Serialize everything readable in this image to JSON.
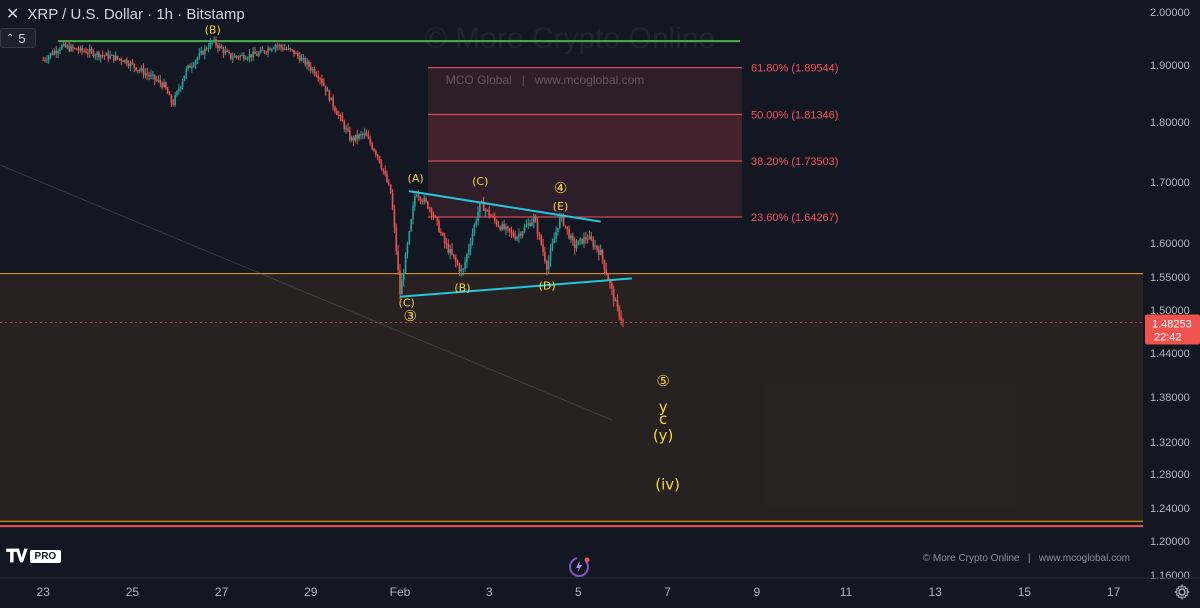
{
  "header": {
    "symbol_title": "XRP / U.S. Dollar · 1h · Bitstamp",
    "interval_value": "5"
  },
  "watermark": "© More Crypto Online",
  "inner_watermark": "MCO Global   |   www.mcoglobal.com",
  "footer": {
    "pro_label": "PRO",
    "credit": "© More Crypto Online   |   www.mcoglobal.com"
  },
  "colors": {
    "background": "#131722",
    "up": "#26a69a",
    "down": "#ef5350",
    "fib": "#f7525f",
    "support_zone": "#f0a020",
    "triangle": "#26c6da",
    "resistance": "#4caf50",
    "wave_label": "#f5d442"
  },
  "chart_data": {
    "type": "candlestick",
    "symbol": "XRP / U.S. Dollar",
    "interval": "1h",
    "exchange": "Bitstamp",
    "last_price": "1.48253",
    "countdown": "22:42",
    "price_axis_ticks": [
      "2.00000",
      "1.90000",
      "1.80000",
      "1.70000",
      "1.60000",
      "1.55000",
      "1.50000",
      "1.44000",
      "1.38000",
      "1.32000",
      "1.28000",
      "1.24000",
      "1.20000",
      "1.16000"
    ],
    "date_axis_ticks": [
      "23",
      "25",
      "27",
      "29",
      "Feb",
      "3",
      "5",
      "7",
      "9",
      "11",
      "13",
      "15",
      "17"
    ],
    "ylim": [
      1.158,
      2.0
    ],
    "price_path": [
      {
        "t": -8.0,
        "p": 1.91
      },
      {
        "t": -7.6,
        "p": 1.935
      },
      {
        "t": -7.0,
        "p": 1.925
      },
      {
        "t": -6.2,
        "p": 1.91
      },
      {
        "t": -5.3,
        "p": 1.865
      },
      {
        "t": -5.1,
        "p": 1.83
      },
      {
        "t": -4.8,
        "p": 1.89
      },
      {
        "t": -4.2,
        "p": 1.945
      },
      {
        "t": -3.8,
        "p": 1.915
      },
      {
        "t": -3.2,
        "p": 1.92
      },
      {
        "t": -2.8,
        "p": 1.938
      },
      {
        "t": -2.4,
        "p": 1.925
      },
      {
        "t": -1.8,
        "p": 1.88
      },
      {
        "t": -1.5,
        "p": 1.83
      },
      {
        "t": -1.1,
        "p": 1.77
      },
      {
        "t": -0.8,
        "p": 1.78
      },
      {
        "t": -0.5,
        "p": 1.745
      },
      {
        "t": -0.2,
        "p": 1.68
      },
      {
        "t": 0.0,
        "p": 1.525
      },
      {
        "t": 0.2,
        "p": 1.61
      },
      {
        "t": 0.35,
        "p": 1.685
      },
      {
        "t": 0.7,
        "p": 1.655
      },
      {
        "t": 1.0,
        "p": 1.6
      },
      {
        "t": 1.4,
        "p": 1.555
      },
      {
        "t": 1.8,
        "p": 1.665
      },
      {
        "t": 2.2,
        "p": 1.63
      },
      {
        "t": 2.6,
        "p": 1.61
      },
      {
        "t": 3.0,
        "p": 1.64
      },
      {
        "t": 3.3,
        "p": 1.565
      },
      {
        "t": 3.6,
        "p": 1.645
      },
      {
        "t": 3.9,
        "p": 1.595
      },
      {
        "t": 4.2,
        "p": 1.61
      },
      {
        "t": 4.5,
        "p": 1.585
      },
      {
        "t": 4.7,
        "p": 1.54
      },
      {
        "t": 4.85,
        "p": 1.505
      },
      {
        "t": 5.0,
        "p": 1.48253
      }
    ],
    "fib_levels": [
      {
        "label": "61.80% (1.89544)",
        "price": 1.89544
      },
      {
        "label": "50.00% (1.81346)",
        "price": 1.81346
      },
      {
        "label": "38.20% (1.73503)",
        "price": 1.73503
      },
      {
        "label": "23.60% (1.64267)",
        "price": 1.64267
      }
    ],
    "support_zone": {
      "top": 1.555,
      "bottom": 1.222
    },
    "horizontal_lines": [
      {
        "name": "resistance",
        "price": 1.945,
        "color": "#4caf50"
      },
      {
        "name": "zone-top",
        "price": 1.555,
        "color": "#f0a020"
      },
      {
        "name": "last-price",
        "price": 1.48253,
        "color": "#ef5350"
      },
      {
        "name": "zone-bottom",
        "price": 1.224,
        "color": "#f0a020"
      },
      {
        "name": "bottom-red",
        "price": 1.218,
        "color": "#ef5350"
      }
    ],
    "triangle": {
      "upper": [
        {
          "t": 0.2,
          "p": 1.685
        },
        {
          "t": 4.5,
          "p": 1.635
        }
      ],
      "lower": [
        {
          "t": 0.0,
          "p": 1.52
        },
        {
          "t": 5.2,
          "p": 1.548
        }
      ]
    },
    "wave_labels": [
      {
        "text": "(B)",
        "t": -4.2,
        "p": 1.959
      },
      {
        "text": "(A)",
        "t": 0.35,
        "p": 1.7
      },
      {
        "text": "(C)",
        "t": 1.8,
        "p": 1.695
      },
      {
        "text": "④",
        "t": 3.6,
        "p": 1.682
      },
      {
        "text": "(E)",
        "t": 3.6,
        "p": 1.654
      },
      {
        "text": "(B)",
        "t": 1.4,
        "p": 1.528
      },
      {
        "text": "(D)",
        "t": 3.3,
        "p": 1.531
      },
      {
        "text": "(C)",
        "t": 0.15,
        "p": 1.505
      },
      {
        "text": "③",
        "t": 0.23,
        "p": 1.485
      },
      {
        "text": "⑤",
        "t": 5.9,
        "p": 1.395
      },
      {
        "text": "y",
        "t": 5.9,
        "p": 1.36
      },
      {
        "text": "c",
        "t": 5.9,
        "p": 1.344
      },
      {
        "text": "(y)",
        "t": 5.9,
        "p": 1.322
      },
      {
        "text": "(iv)",
        "t": 6.0,
        "p": 1.262
      }
    ]
  }
}
